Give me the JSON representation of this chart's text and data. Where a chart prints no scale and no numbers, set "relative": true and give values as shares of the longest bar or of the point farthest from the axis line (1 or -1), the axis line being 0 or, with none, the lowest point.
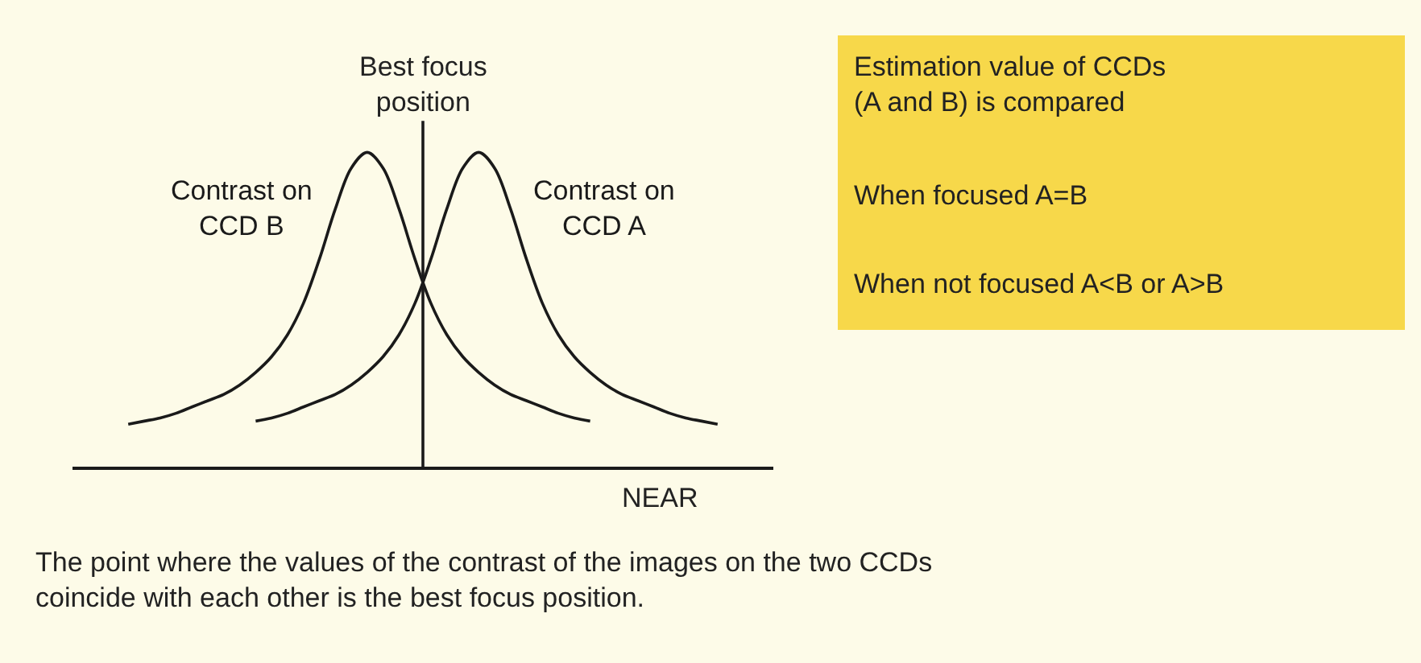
{
  "chart_data": {
    "type": "line",
    "relative": true,
    "xlabel": "NEAR",
    "categories": [
      null,
      null,
      null,
      null,
      null,
      null,
      null,
      null,
      null,
      null,
      null,
      null,
      null,
      null,
      null,
      null,
      null,
      null,
      null,
      null,
      null,
      null,
      null,
      null,
      null,
      null,
      null,
      null,
      null,
      null,
      null,
      null,
      null,
      null,
      null,
      null,
      null,
      null
    ],
    "series": [
      {
        "name": "Contrast on\nCCD B",
        "color": "#1a1a1a",
        "values": [
          0.135,
          0.145,
          0.155,
          0.17,
          0.19,
          0.21,
          0.23,
          0.26,
          0.3,
          0.35,
          0.42,
          0.52,
          0.66,
          0.82,
          0.95,
          1,
          0.95,
          0.82,
          0.66,
          0.52,
          0.42,
          0.35,
          0.3,
          0.26,
          0.23,
          0.21,
          0.19,
          0.17,
          0.155,
          0.145,
          null,
          null,
          null,
          null,
          null,
          null,
          null,
          null
        ]
      },
      {
        "name": "Contrast on\nCCD A",
        "color": "#1a1a1a",
        "values": [
          null,
          null,
          null,
          null,
          null,
          null,
          null,
          null,
          0.145,
          0.155,
          0.17,
          0.19,
          0.21,
          0.23,
          0.26,
          0.3,
          0.35,
          0.42,
          0.52,
          0.66,
          0.82,
          0.95,
          1,
          0.95,
          0.82,
          0.66,
          0.52,
          0.42,
          0.35,
          0.3,
          0.26,
          0.23,
          0.21,
          0.19,
          0.17,
          0.155,
          0.145,
          0.135
        ]
      }
    ],
    "annotations": [
      "Best focus\nposition",
      "Estimation value of CCDs\n(A and B) is compared",
      "When focused A=B",
      "When not focused A<B or A>B",
      "The point where the values of the contrast of the images on the two CCDs\ncoincide with each other is the best focus position."
    ],
    "legend": false,
    "marker": "none",
    "line_style": "solid"
  }
}
